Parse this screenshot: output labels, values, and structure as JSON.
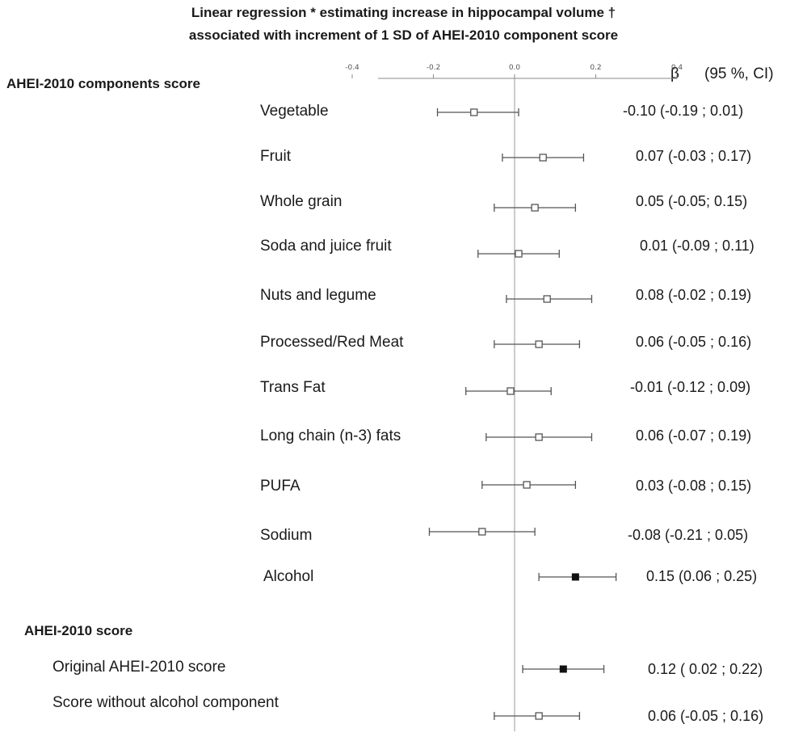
{
  "title": {
    "line1": "Linear regression * estimating  increase in hippocampal volume †",
    "line2": "associated with increment of 1 SD of AHEI-2010 component score"
  },
  "column_headers": {
    "beta": "β",
    "ci": "(95 %, CI)"
  },
  "sections": {
    "components": "AHEI-2010 components score",
    "score": "AHEI-2010 score"
  },
  "rows": [
    {
      "label": "Vegetable",
      "value_text": "-0.10  (-0.19 ; 0.01)"
    },
    {
      "label": "Fruit",
      "value_text": "0.07  (-0.03 ; 0.17)"
    },
    {
      "label": "Whole grain",
      "value_text": "0.05  (-0.05; 0.15)"
    },
    {
      "label": "Soda and juice fruit",
      "value_text": "0.01 (-0.09 ; 0.11)"
    },
    {
      "label": "Nuts and legume",
      "value_text": "0.08  (-0.02 ; 0.19)"
    },
    {
      "label": "Processed/Red Meat",
      "value_text": "0.06  (-0.05 ; 0.16)"
    },
    {
      "label": "Trans Fat",
      "value_text": "-0.01  (-0.12 ; 0.09)"
    },
    {
      "label": "Long chain (n-3) fats",
      "value_text": "0.06  (-0.07 ; 0.19)"
    },
    {
      "label": "PUFA",
      "value_text": "0.03  (-0.08 ; 0.15)"
    },
    {
      "label": "Sodium",
      "value_text": "-0.08  (-0.21 ; 0.05)"
    },
    {
      "label": "Alcohol",
      "value_text": "0.15  (0.06 ; 0.25)"
    },
    {
      "label": "Original AHEI-2010 score",
      "value_text": "0.12  ( 0.02 ; 0.22)"
    },
    {
      "label": "Score without alcohol component",
      "value_text": "0.06  (-0.05 ; 0.16)"
    }
  ],
  "chart_data": {
    "type": "forest",
    "xlim": [
      -0.4,
      0.4
    ],
    "ticks": [
      "-0.4",
      "-0.2",
      "0.0",
      "0.2",
      "0.4"
    ],
    "reference_line": 0.0,
    "points": [
      {
        "label": "Vegetable",
        "beta": -0.1,
        "lower": -0.19,
        "upper": 0.01,
        "marker": "open"
      },
      {
        "label": "Fruit",
        "beta": 0.07,
        "lower": -0.03,
        "upper": 0.17,
        "marker": "open"
      },
      {
        "label": "Whole grain",
        "beta": 0.05,
        "lower": -0.05,
        "upper": 0.15,
        "marker": "open"
      },
      {
        "label": "Soda and juice fruit",
        "beta": 0.01,
        "lower": -0.09,
        "upper": 0.11,
        "marker": "open"
      },
      {
        "label": "Nuts and legume",
        "beta": 0.08,
        "lower": -0.02,
        "upper": 0.19,
        "marker": "open"
      },
      {
        "label": "Processed/Red Meat",
        "beta": 0.06,
        "lower": -0.05,
        "upper": 0.16,
        "marker": "open"
      },
      {
        "label": "Trans Fat",
        "beta": -0.01,
        "lower": -0.12,
        "upper": 0.09,
        "marker": "open"
      },
      {
        "label": "Long chain (n-3) fats",
        "beta": 0.06,
        "lower": -0.07,
        "upper": 0.19,
        "marker": "open"
      },
      {
        "label": "PUFA",
        "beta": 0.03,
        "lower": -0.08,
        "upper": 0.15,
        "marker": "open"
      },
      {
        "label": "Sodium",
        "beta": -0.08,
        "lower": -0.21,
        "upper": 0.05,
        "marker": "open"
      },
      {
        "label": "Alcohol",
        "beta": 0.15,
        "lower": 0.06,
        "upper": 0.25,
        "marker": "filled"
      },
      {
        "label": "Original AHEI-2010 score",
        "beta": 0.12,
        "lower": 0.02,
        "upper": 0.22,
        "marker": "filled"
      },
      {
        "label": "Score without alcohol component",
        "beta": 0.06,
        "lower": -0.05,
        "upper": 0.16,
        "marker": "open"
      }
    ]
  }
}
